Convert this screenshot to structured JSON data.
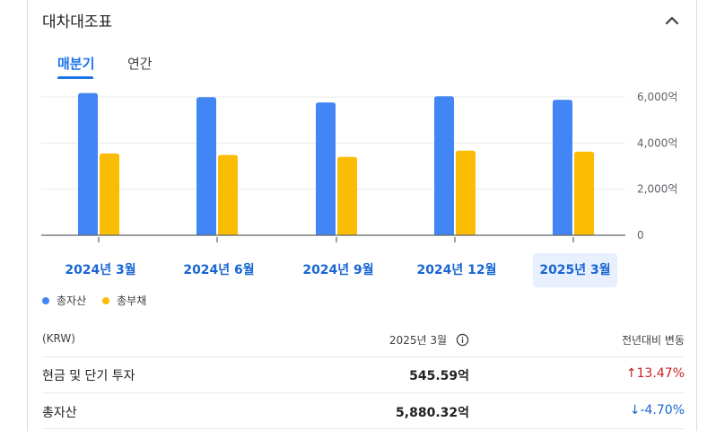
{
  "header": {
    "title": "대차대조표"
  },
  "tabs": [
    {
      "label": "매분기",
      "active": true
    },
    {
      "label": "연간",
      "active": false
    }
  ],
  "chart_data": {
    "type": "bar",
    "categories": [
      "2024년 3월",
      "2024년 6월",
      "2024년 9월",
      "2024년 12월",
      "2025년 3월"
    ],
    "selected_category": "2025년 3월",
    "series": [
      {
        "name": "총자산",
        "color": "#4285f4",
        "values": [
          6170,
          5990,
          5760,
          6030,
          5880
        ]
      },
      {
        "name": "총부채",
        "color": "#fbbc04",
        "values": [
          3550,
          3480,
          3400,
          3670,
          3630
        ]
      }
    ],
    "yticks": [
      {
        "value": 0,
        "label": "0"
      },
      {
        "value": 2000,
        "label": "2,000억"
      },
      {
        "value": 4000,
        "label": "4,000억"
      },
      {
        "value": 6000,
        "label": "6,000억"
      }
    ],
    "ylim": [
      0,
      6000
    ],
    "grid": true,
    "legend_position": "bottom-left"
  },
  "table": {
    "columns": {
      "unit": "(KRW)",
      "period": "2025년 3월",
      "change": "전년대비 변동"
    },
    "rows": [
      {
        "label": "현금 및 단기 투자",
        "value": "545.59억",
        "change": "13.47%",
        "direction": "up"
      },
      {
        "label": "총자산",
        "value": "5,880.32억",
        "change": "-4.70%",
        "direction": "down"
      }
    ]
  }
}
